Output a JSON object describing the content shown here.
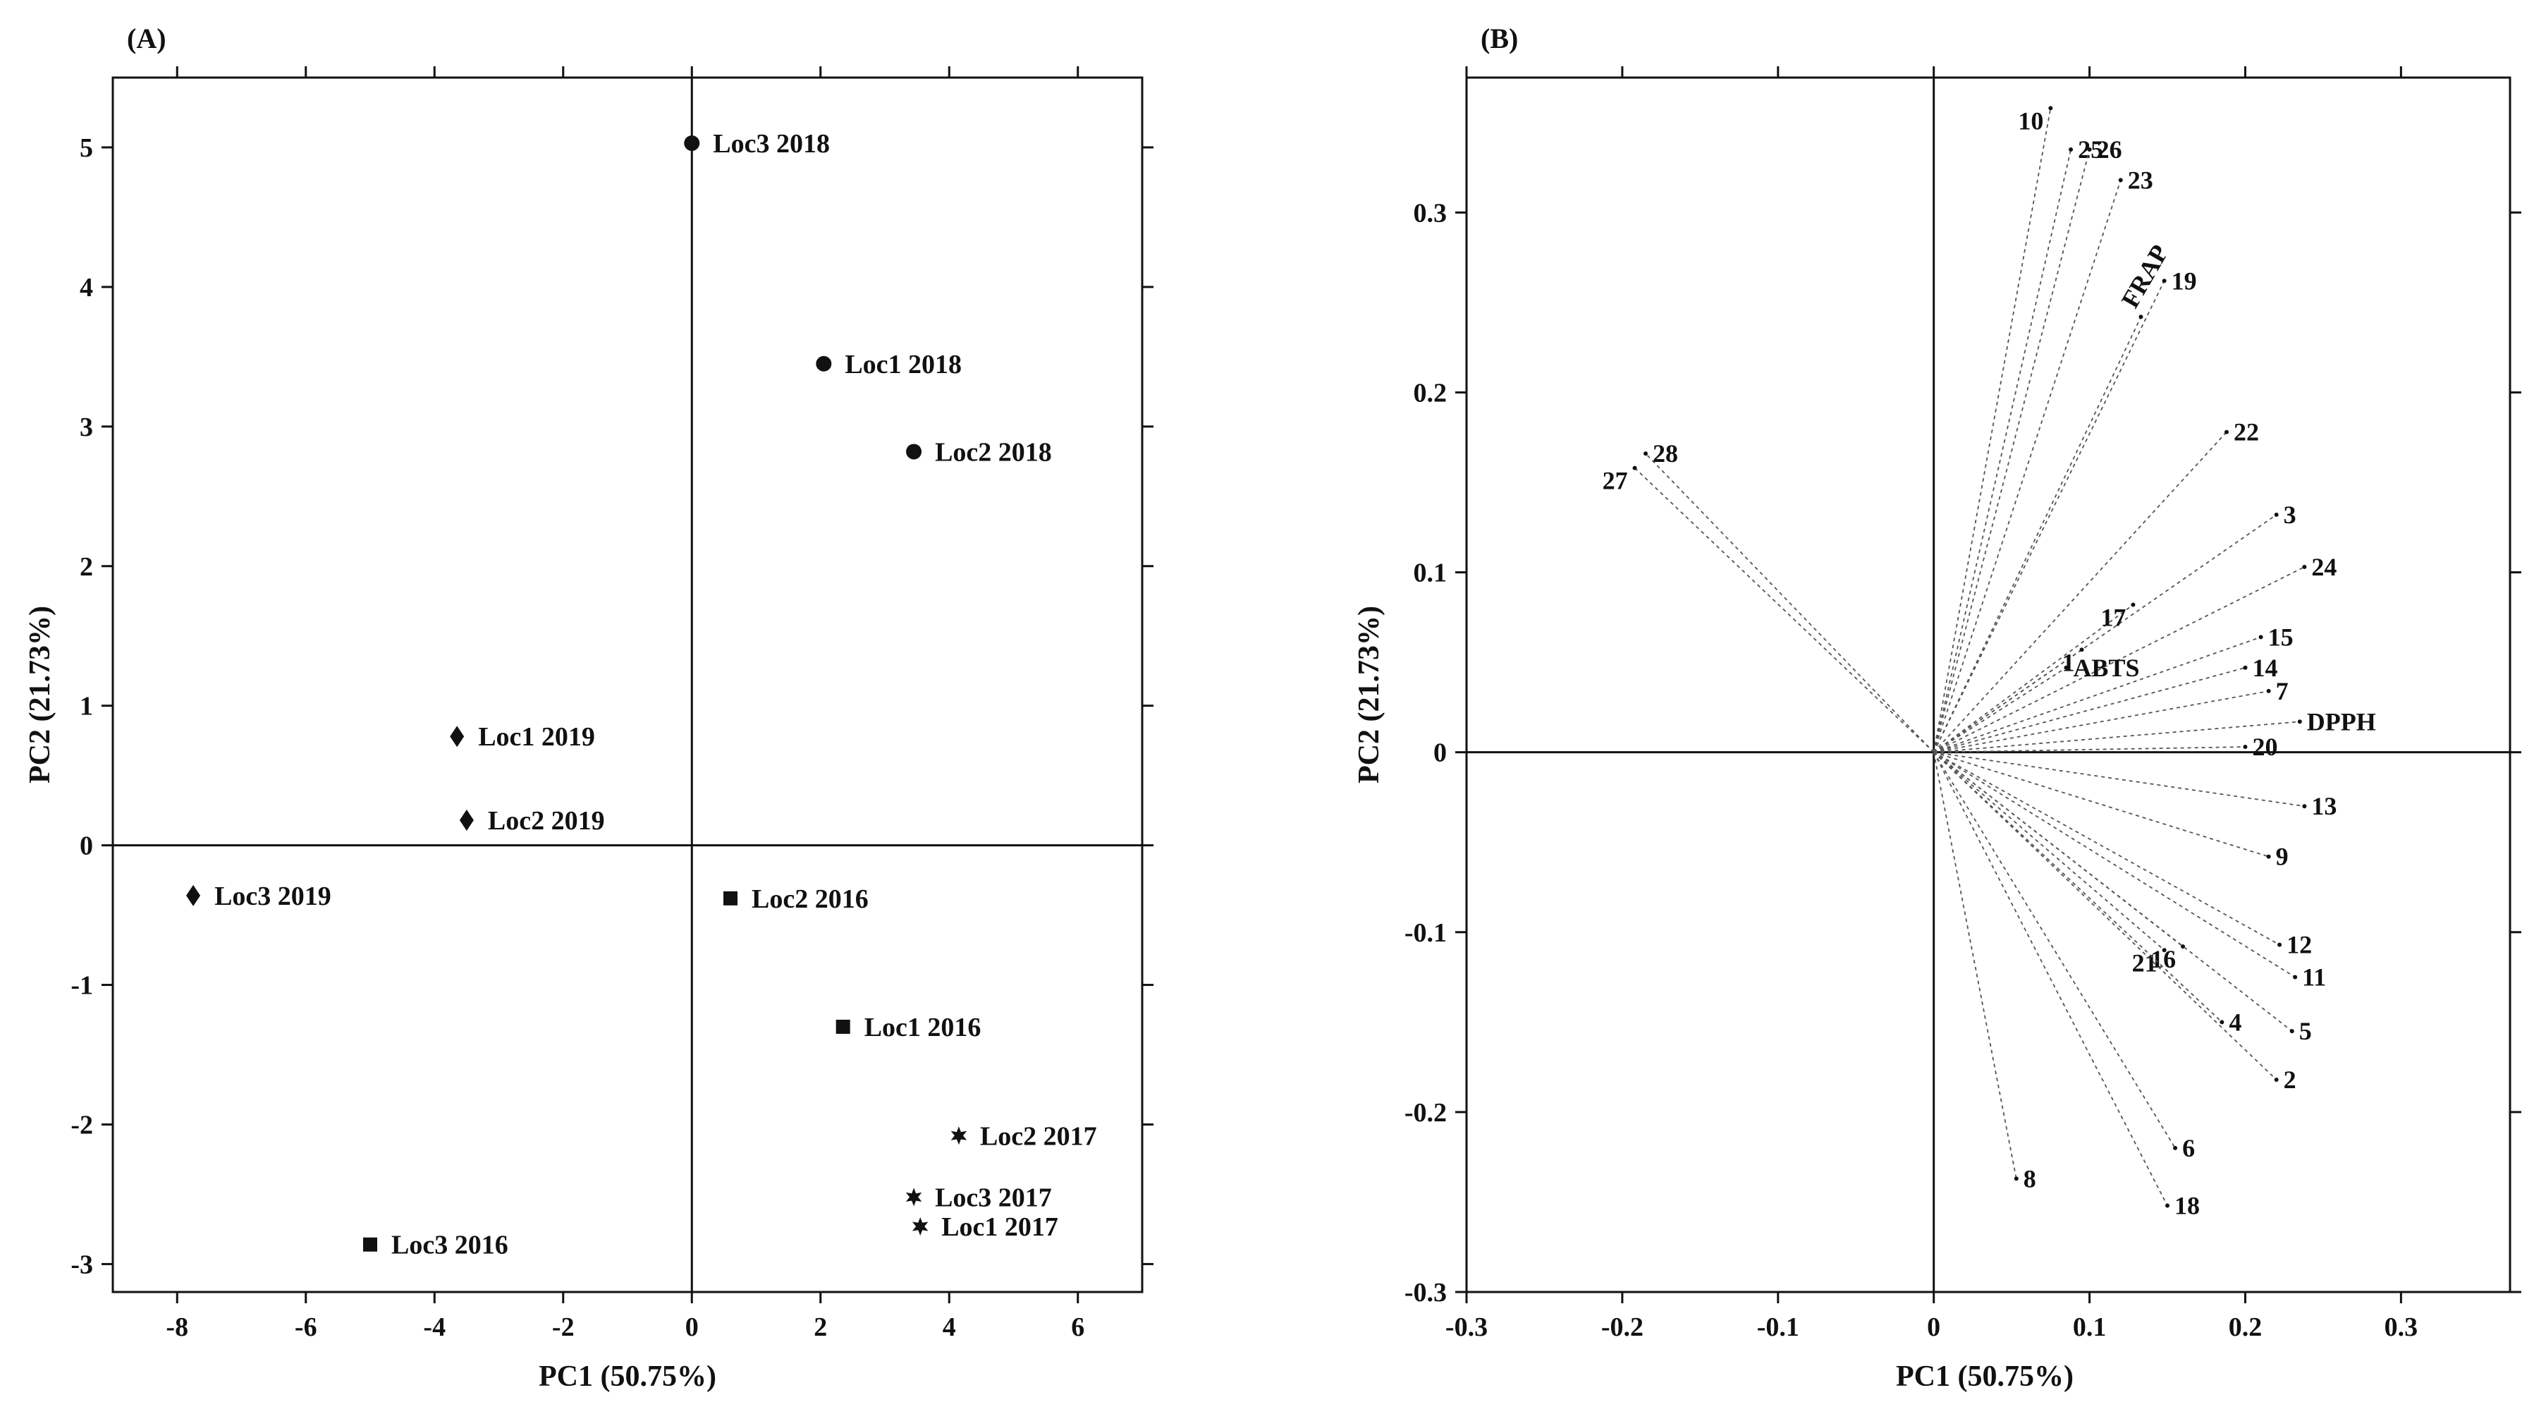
{
  "chart_data": [
    {
      "type": "scatter",
      "panel_label": "(A)",
      "xlabel": "PC1 (50.75%)",
      "ylabel": "PC2 (21.73%)",
      "xlim": [
        -9,
        7
      ],
      "ylim": [
        -3.2,
        5.5
      ],
      "xticks": [
        -8,
        -6,
        -4,
        -2,
        0,
        2,
        4,
        6
      ],
      "yticks": [
        -3,
        -2,
        -1,
        0,
        1,
        2,
        3,
        4,
        5
      ],
      "points": [
        {
          "label": "Loc3 2018",
          "x": 0.0,
          "y": 5.03,
          "marker": "circle"
        },
        {
          "label": "Loc1 2018",
          "x": 2.05,
          "y": 3.45,
          "marker": "circle"
        },
        {
          "label": "Loc2 2018",
          "x": 3.45,
          "y": 2.82,
          "marker": "circle"
        },
        {
          "label": "Loc1 2019",
          "x": -3.65,
          "y": 0.78,
          "marker": "diamond"
        },
        {
          "label": "Loc2 2019",
          "x": -3.5,
          "y": 0.18,
          "marker": "diamond"
        },
        {
          "label": "Loc3 2019",
          "x": -7.75,
          "y": -0.36,
          "marker": "diamond"
        },
        {
          "label": "Loc2 2016",
          "x": 0.6,
          "y": -0.38,
          "marker": "square"
        },
        {
          "label": "Loc1 2016",
          "x": 2.35,
          "y": -1.3,
          "marker": "square"
        },
        {
          "label": "Loc3 2016",
          "x": -5.0,
          "y": -2.86,
          "marker": "square"
        },
        {
          "label": "Loc2 2017",
          "x": 4.15,
          "y": -2.08,
          "marker": "star"
        },
        {
          "label": "Loc3 2017",
          "x": 3.45,
          "y": -2.52,
          "marker": "star"
        },
        {
          "label": "Loc1 2017",
          "x": 3.55,
          "y": -2.73,
          "marker": "star"
        }
      ]
    },
    {
      "type": "scatter",
      "subtype": "loading-vectors",
      "panel_label": "(B)",
      "xlabel": "PC1 (50.75%)",
      "ylabel": "PC2 (21.73%)",
      "xlim": [
        -0.3,
        0.37
      ],
      "ylim": [
        -0.3,
        0.375
      ],
      "xticks": [
        -0.3,
        -0.2,
        -0.1,
        0,
        0.1,
        0.2,
        0.3
      ],
      "yticks": [
        -0.3,
        -0.2,
        -0.1,
        0,
        0.1,
        0.2,
        0.3
      ],
      "xtick_labels": [
        "-0.3",
        "-0.2",
        "-0.1",
        "0",
        "0.1",
        "0.2",
        "0.3"
      ],
      "ytick_labels": [
        "-0.3",
        "-0.2",
        "-0.1",
        "0",
        "0.1",
        "0.2",
        "0.3"
      ],
      "vectors": [
        {
          "label": "10",
          "x": 0.075,
          "y": 0.358,
          "anchor": "end"
        },
        {
          "label": "25",
          "x": 0.088,
          "y": 0.335,
          "anchor": "start"
        },
        {
          "label": "26",
          "x": 0.1,
          "y": 0.335,
          "anchor": "start"
        },
        {
          "label": "23",
          "x": 0.12,
          "y": 0.318,
          "anchor": "start"
        },
        {
          "label": "FRAP",
          "x": 0.133,
          "y": 0.242,
          "anchor": "rotated"
        },
        {
          "label": "19",
          "x": 0.148,
          "y": 0.262,
          "anchor": "start"
        },
        {
          "label": "22",
          "x": 0.188,
          "y": 0.178,
          "anchor": "start"
        },
        {
          "label": "28",
          "x": -0.185,
          "y": 0.166,
          "anchor": "start"
        },
        {
          "label": "27",
          "x": -0.192,
          "y": 0.158,
          "anchor": "end"
        },
        {
          "label": "3",
          "x": 0.22,
          "y": 0.132,
          "anchor": "start"
        },
        {
          "label": "24",
          "x": 0.238,
          "y": 0.103,
          "anchor": "start"
        },
        {
          "label": "17",
          "x": 0.128,
          "y": 0.082,
          "anchor": "end"
        },
        {
          "label": "1",
          "x": 0.095,
          "y": 0.057,
          "anchor": "end"
        },
        {
          "label": "15",
          "x": 0.21,
          "y": 0.064,
          "anchor": "start"
        },
        {
          "label": "ABTS",
          "x": 0.085,
          "y": 0.047,
          "anchor": "start"
        },
        {
          "label": "14",
          "x": 0.2,
          "y": 0.047,
          "anchor": "start"
        },
        {
          "label": "7",
          "x": 0.215,
          "y": 0.034,
          "anchor": "start"
        },
        {
          "label": "DPPH",
          "x": 0.235,
          "y": 0.017,
          "anchor": "start"
        },
        {
          "label": "20",
          "x": 0.2,
          "y": 0.003,
          "anchor": "start"
        },
        {
          "label": "13",
          "x": 0.238,
          "y": -0.03,
          "anchor": "start"
        },
        {
          "label": "9",
          "x": 0.215,
          "y": -0.058,
          "anchor": "start"
        },
        {
          "label": "12",
          "x": 0.222,
          "y": -0.107,
          "anchor": "start"
        },
        {
          "label": "16",
          "x": 0.16,
          "y": -0.108,
          "anchor": "end"
        },
        {
          "label": "21",
          "x": 0.148,
          "y": -0.11,
          "anchor": "end"
        },
        {
          "label": "11",
          "x": 0.232,
          "y": -0.125,
          "anchor": "start"
        },
        {
          "label": "4",
          "x": 0.185,
          "y": -0.15,
          "anchor": "start"
        },
        {
          "label": "5",
          "x": 0.23,
          "y": -0.155,
          "anchor": "start"
        },
        {
          "label": "2",
          "x": 0.22,
          "y": -0.182,
          "anchor": "start"
        },
        {
          "label": "6",
          "x": 0.155,
          "y": -0.22,
          "anchor": "start"
        },
        {
          "label": "8",
          "x": 0.053,
          "y": -0.237,
          "anchor": "start"
        },
        {
          "label": "18",
          "x": 0.15,
          "y": -0.252,
          "anchor": "start"
        }
      ]
    }
  ]
}
